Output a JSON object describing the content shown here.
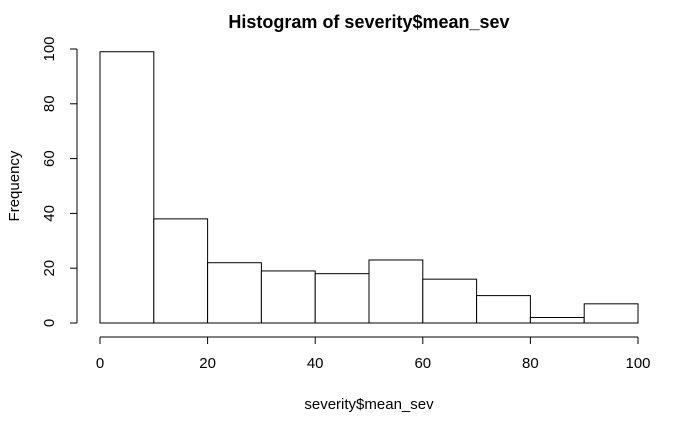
{
  "chart_data": {
    "type": "bar",
    "title": "Histogram of severity$mean_sev",
    "xlabel": "severity$mean_sev",
    "ylabel": "Frequency",
    "bins": [
      {
        "from": 0,
        "to": 10,
        "count": 99
      },
      {
        "from": 10,
        "to": 20,
        "count": 38
      },
      {
        "from": 20,
        "to": 30,
        "count": 22
      },
      {
        "from": 30,
        "to": 40,
        "count": 19
      },
      {
        "from": 40,
        "to": 50,
        "count": 18
      },
      {
        "from": 50,
        "to": 60,
        "count": 23
      },
      {
        "from": 60,
        "to": 70,
        "count": 16
      },
      {
        "from": 70,
        "to": 80,
        "count": 10
      },
      {
        "from": 80,
        "to": 90,
        "count": 2
      },
      {
        "from": 90,
        "to": 100,
        "count": 7
      }
    ],
    "xlim": [
      0,
      100
    ],
    "ylim": [
      0,
      100
    ],
    "x_ticks": [
      0,
      20,
      40,
      60,
      80,
      100
    ],
    "y_ticks": [
      0,
      20,
      40,
      60,
      80,
      100
    ],
    "grid": false,
    "bar_fill": "#ffffff",
    "bar_stroke": "#000000"
  }
}
